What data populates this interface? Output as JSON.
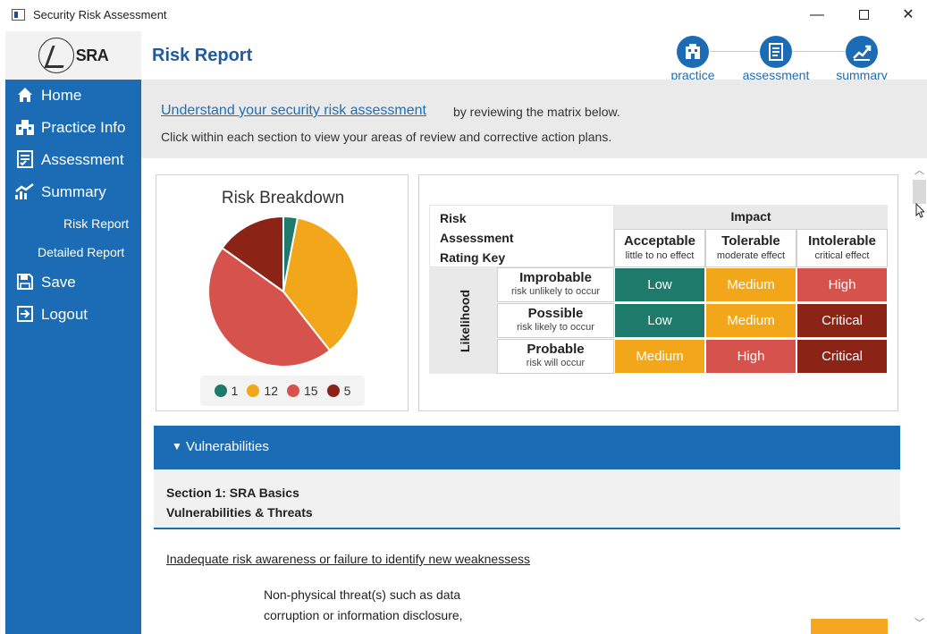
{
  "window": {
    "title": "Security Risk Assessment",
    "min": "—",
    "close": "✕"
  },
  "logo": {
    "text": "SRA"
  },
  "header": {
    "title": "Risk Report"
  },
  "steps": [
    {
      "label": "practice",
      "icon": "building-icon"
    },
    {
      "label": "assessment",
      "icon": "checklist-icon"
    },
    {
      "label": "summary",
      "icon": "chart-icon"
    }
  ],
  "sidebar": {
    "items": [
      {
        "label": "Home",
        "icon": "home-icon"
      },
      {
        "label": "Practice Info",
        "icon": "building-icon"
      },
      {
        "label": "Assessment",
        "icon": "checklist-icon"
      },
      {
        "label": "Summary",
        "icon": "chart-icon"
      },
      {
        "label": "Risk Report"
      },
      {
        "label": "Detailed Report"
      },
      {
        "label": "Save",
        "icon": "save-icon"
      },
      {
        "label": "Logout",
        "icon": "logout-icon"
      }
    ]
  },
  "intro": {
    "link": "Understand your security risk assessment",
    "rest": "by reviewing the matrix below.",
    "line2": "Click within each section to view your areas of review and corrective action plans."
  },
  "chart_data": {
    "type": "pie",
    "title": "Risk Breakdown",
    "categories": [
      "Low",
      "Medium",
      "High",
      "Critical"
    ],
    "values": [
      1,
      12,
      15,
      5
    ],
    "colors": [
      "#1e7a6b",
      "#f2a71b",
      "#d5534c",
      "#8b2316"
    ]
  },
  "matrix": {
    "key": [
      "Risk",
      "Assessment",
      "Rating Key"
    ],
    "impact": "Impact",
    "likelihood": "Likelihood",
    "columns": [
      {
        "title": "Acceptable",
        "sub": "little to no effect"
      },
      {
        "title": "Tolerable",
        "sub": "moderate effect"
      },
      {
        "title": "Intolerable",
        "sub": "critical effect"
      }
    ],
    "rows": [
      {
        "title": "Improbable",
        "sub": "risk unlikely to occur",
        "cells": [
          "Low",
          "Medium",
          "High"
        ]
      },
      {
        "title": "Possible",
        "sub": "risk likely to occur",
        "cells": [
          "Low",
          "Medium",
          "Critical"
        ]
      },
      {
        "title": "Probable",
        "sub": "risk will occur",
        "cells": [
          "Medium",
          "High",
          "Critical"
        ]
      }
    ],
    "rating_colors": {
      "Low": "#1e7a6b",
      "Medium": "#f2a71b",
      "High": "#d5534c",
      "Critical": "#8b2316"
    }
  },
  "vulnerabilities": {
    "label": "Vulnerabilities",
    "section_line1": "Section 1: SRA Basics",
    "section_line2": "Vulnerabilities & Threats",
    "threat_title": "Inadequate risk awareness or failure to identify new weaknessess",
    "threat_line1": "Non-physical threat(s) such as data",
    "threat_line2": "corruption or information disclosure,"
  }
}
